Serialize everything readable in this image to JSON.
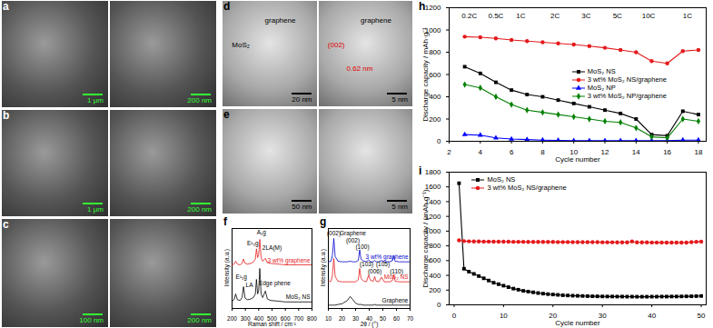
{
  "chart_data": [
    {
      "type": "image",
      "title": "a",
      "images": [
        {
          "annotations": [
            {
              "text": "1 μm",
              "color": "#33ff33"
            }
          ]
        },
        {
          "annotations": [
            {
              "text": "200 nm",
              "color": "#33ff33"
            }
          ]
        }
      ]
    },
    {
      "type": "image",
      "title": "b",
      "images": [
        {
          "annotations": [
            {
              "text": "1 μm",
              "color": "#33ff33"
            }
          ]
        },
        {
          "annotations": [
            {
              "text": "200 nm",
              "color": "#33ff33"
            }
          ]
        }
      ]
    },
    {
      "type": "image",
      "title": "c",
      "images": [
        {
          "annotations": [
            {
              "text": "100 nm",
              "color": "#33ff33"
            }
          ]
        },
        {
          "annotations": [
            {
              "text": "200 nm",
              "color": "#33ff33"
            }
          ]
        }
      ]
    },
    {
      "type": "image",
      "title": "d",
      "images": [
        {
          "annotations": [
            {
              "text": "graphene",
              "color": "#000000"
            },
            {
              "text": "MoS₂",
              "color": "#000000"
            },
            {
              "text": "20 nm",
              "color": "#000000"
            }
          ]
        },
        {
          "annotations": [
            {
              "text": "graphene",
              "color": "#000000"
            },
            {
              "text": "(002)",
              "color": "#e00000"
            },
            {
              "text": "0.62 nm",
              "color": "#e00000"
            },
            {
              "text": "5 nm",
              "color": "#000000"
            }
          ]
        }
      ]
    },
    {
      "type": "image",
      "title": "e",
      "images": [
        {
          "annotations": [
            {
              "text": "50 nm",
              "color": "#000000"
            }
          ]
        },
        {
          "annotations": [
            {
              "text": "5 nm",
              "color": "#000000"
            }
          ]
        }
      ]
    },
    {
      "type": "line",
      "title": "f",
      "x_label": "Raman shift / cm⁻¹",
      "y_label": "Intensity (a.u.)",
      "tick_labels": "x",
      "x": [
        200,
        215,
        227,
        240,
        260,
        275,
        286,
        298,
        315,
        340,
        360,
        375,
        383,
        392,
        400,
        408,
        418,
        430,
        450,
        465,
        490,
        550,
        600,
        700,
        800
      ],
      "series": [
        {
          "name": "3 wt% graphene",
          "color": "#e41a1c",
          "values": [
            6.0,
            6.1,
            6.5,
            6.1,
            6.0,
            6.2,
            6.8,
            6.2,
            6.1,
            6.2,
            6.4,
            6.8,
            8.2,
            7.0,
            7.4,
            9.5,
            7.0,
            6.5,
            6.9,
            6.3,
            6.2,
            6.1,
            6.0,
            6.0,
            6.0
          ]
        },
        {
          "name": "MoS₂ NS",
          "color": "#000000",
          "values": [
            1.0,
            1.2,
            2.0,
            1.2,
            1.1,
            1.5,
            3.0,
            1.4,
            1.2,
            1.3,
            1.5,
            2.0,
            4.0,
            2.0,
            2.5,
            5.5,
            2.0,
            1.5,
            2.4,
            1.3,
            1.1,
            1.0,
            0.9,
            0.9,
            0.9
          ]
        }
      ],
      "annotations": [
        {
          "text": "E¹₁g",
          "x": 270,
          "y": 4.3
        },
        {
          "text": "LA",
          "x": 330,
          "y": 3.2
        },
        {
          "text": "E¹₂g",
          "x": 355,
          "y": 9.0
        },
        {
          "text": "A₁g",
          "x": 420,
          "y": 10.5
        },
        {
          "text": "2LA(M)",
          "x": 500,
          "y": 8.3
        },
        {
          "text": "Edge phene",
          "x": 520,
          "y": 3.5
        }
      ],
      "xlim": [
        200,
        800
      ],
      "xticks": [
        200,
        300,
        400,
        500,
        600,
        700,
        800
      ],
      "ylim": [
        0,
        11
      ]
    },
    {
      "type": "line",
      "title": "g",
      "x_label": "2θ / (°)",
      "y_label": "Intensity (a.u.)",
      "tick_labels": "x",
      "x": [
        10,
        12,
        13,
        14,
        15,
        17,
        20,
        24,
        26,
        28,
        30,
        32,
        33,
        34,
        36,
        38,
        39.5,
        41,
        43,
        44,
        45,
        47,
        49,
        51,
        55,
        57,
        58,
        59,
        62,
        66,
        70
      ],
      "series": [
        {
          "name": "3 wt% graphene",
          "color": "#0000cc",
          "values": [
            7.0,
            7.1,
            8.0,
            10.5,
            7.8,
            7.1,
            7.0,
            7.0,
            7.1,
            7.0,
            7.0,
            7.2,
            8.8,
            7.4,
            7.1,
            7.0,
            7.3,
            7.0,
            7.0,
            7.2,
            7.0,
            7.0,
            7.2,
            7.0,
            7.0,
            7.2,
            7.9,
            7.1,
            7.0,
            7.0,
            7.0
          ]
        },
        {
          "name": "MoS₂ NS",
          "color": "#e41a1c",
          "values": [
            4.0,
            4.1,
            5.0,
            7.5,
            4.8,
            4.1,
            4.0,
            4.0,
            4.0,
            4.0,
            4.0,
            4.3,
            6.0,
            4.5,
            4.1,
            4.0,
            5.0,
            4.2,
            4.1,
            4.8,
            4.1,
            4.0,
            4.7,
            4.0,
            4.0,
            4.2,
            5.0,
            4.1,
            4.0,
            4.0,
            4.0
          ]
        },
        {
          "name": "Graphene",
          "color": "#000000",
          "values": [
            0.5,
            0.5,
            0.5,
            0.5,
            0.5,
            0.6,
            0.7,
            1.2,
            1.8,
            1.3,
            0.8,
            0.6,
            0.6,
            0.6,
            0.5,
            0.5,
            0.5,
            0.5,
            0.5,
            0.6,
            0.5,
            0.5,
            0.5,
            0.5,
            0.5,
            0.5,
            0.5,
            0.5,
            0.5,
            0.5,
            0.5
          ]
        }
      ],
      "annotations": [
        {
          "text": "(002)",
          "x": 14,
          "y": 11.2
        },
        {
          "text": "Graphene",
          "x": 28,
          "y": 11.2
        },
        {
          "text": "(002)",
          "x": 28,
          "y": 10.2
        },
        {
          "text": "(100)",
          "x": 35,
          "y": 9.2
        },
        {
          "text": "(103)",
          "x": 38,
          "y": 6.6
        },
        {
          "text": "(006)",
          "x": 44,
          "y": 5.6
        },
        {
          "text": "(105)",
          "x": 50,
          "y": 6.6
        },
        {
          "text": "(110)",
          "x": 60,
          "y": 5.6
        }
      ],
      "xlim": [
        10,
        70
      ],
      "xticks": [
        10,
        20,
        30,
        40,
        50,
        60,
        70
      ],
      "ylim": [
        0,
        12
      ]
    },
    {
      "type": "line",
      "title": "h",
      "x_label": "Cycle number",
      "y_label": "Discharge capacity / mAh·g⁻¹",
      "legend": "center",
      "x": [
        3,
        4,
        5,
        6,
        7,
        8,
        9,
        10,
        11,
        12,
        13,
        14,
        15,
        16,
        17,
        18
      ],
      "series": [
        {
          "name": "MoS₂ NS",
          "color": "#000000",
          "marker": "square",
          "values": [
            670,
            610,
            530,
            460,
            420,
            400,
            370,
            340,
            310,
            280,
            250,
            200,
            60,
            50,
            270,
            240
          ]
        },
        {
          "name": "3 wt% MoS₂ NS/graphene",
          "color": "#e41a1c",
          "marker": "circle",
          "values": [
            940,
            935,
            925,
            910,
            900,
            890,
            880,
            870,
            855,
            840,
            820,
            800,
            720,
            700,
            810,
            820
          ]
        },
        {
          "name": "MoS₂ NP",
          "color": "#0000ff",
          "marker": "triangle",
          "values": [
            60,
            55,
            30,
            20,
            15,
            10,
            8,
            5,
            5,
            5,
            5,
            5,
            5,
            5,
            10,
            10
          ]
        },
        {
          "name": "3 wt% MoS₂ NP/graphene",
          "color": "#008000",
          "marker": "diamond",
          "values": [
            510,
            480,
            400,
            330,
            280,
            260,
            240,
            220,
            200,
            180,
            170,
            120,
            40,
            30,
            200,
            180
          ]
        }
      ],
      "annotations": [
        {
          "text": "0.2C",
          "x": 3.3,
          "y": 1130
        },
        {
          "text": "0.5C",
          "x": 5,
          "y": 1130
        },
        {
          "text": "1C",
          "x": 6.6,
          "y": 1130
        },
        {
          "text": "2C",
          "x": 8.8,
          "y": 1130
        },
        {
          "text": "3C",
          "x": 10.8,
          "y": 1130
        },
        {
          "text": "5C",
          "x": 12.8,
          "y": 1130
        },
        {
          "text": "10C",
          "x": 14.8,
          "y": 1130
        },
        {
          "text": "1C",
          "x": 17.3,
          "y": 1130
        }
      ],
      "xlim": [
        2,
        18.5
      ],
      "xticks": [
        2,
        4,
        6,
        8,
        10,
        12,
        14,
        16,
        18
      ],
      "ylim": [
        0,
        1200
      ],
      "yticks": [
        0,
        200,
        400,
        600,
        800,
        1000,
        1200
      ]
    },
    {
      "type": "line",
      "title": "i",
      "x_label": "Cycle number",
      "y_label": "Discharge capacity / (mAh g⁻¹)",
      "legend": "upper left",
      "x": [
        1,
        2,
        3,
        4,
        5,
        6,
        7,
        8,
        9,
        10,
        11,
        12,
        13,
        14,
        15,
        16,
        17,
        18,
        19,
        20,
        21,
        22,
        23,
        24,
        25,
        26,
        27,
        28,
        29,
        30,
        31,
        32,
        33,
        34,
        35,
        36,
        37,
        38,
        39,
        40,
        41,
        42,
        43,
        44,
        45,
        46,
        47,
        48,
        49,
        50
      ],
      "series": [
        {
          "name": "MoS₂ NS",
          "color": "#000000",
          "marker": "square",
          "values": [
            1650,
            490,
            450,
            420,
            390,
            360,
            330,
            300,
            280,
            260,
            240,
            220,
            205,
            190,
            180,
            170,
            160,
            152,
            145,
            140,
            135,
            130,
            127,
            124,
            122,
            120,
            118,
            116,
            115,
            114,
            113,
            113,
            112,
            112,
            111,
            111,
            110,
            110,
            110,
            111,
            111,
            112,
            112,
            113,
            113,
            114,
            115,
            116,
            118,
            120
          ]
        },
        {
          "name": "3 wt% MoS₂ NS/graphene",
          "color": "#e41a1c",
          "marker": "circle",
          "values": [
            875,
            865,
            862,
            860,
            860,
            858,
            858,
            857,
            857,
            856,
            856,
            855,
            855,
            855,
            854,
            854,
            854,
            853,
            853,
            853,
            852,
            852,
            852,
            851,
            851,
            851,
            850,
            850,
            850,
            849,
            849,
            849,
            848,
            848,
            848,
            860,
            847,
            847,
            847,
            846,
            846,
            846,
            845,
            845,
            845,
            844,
            844,
            850,
            855,
            858
          ]
        }
      ],
      "xlim": [
        -1,
        51
      ],
      "xticks": [
        0,
        10,
        20,
        30,
        40,
        50
      ],
      "ylim": [
        0,
        1800
      ],
      "yticks": [
        0,
        200,
        400,
        600,
        800,
        1000,
        1200,
        1400,
        1600,
        1800
      ]
    }
  ]
}
